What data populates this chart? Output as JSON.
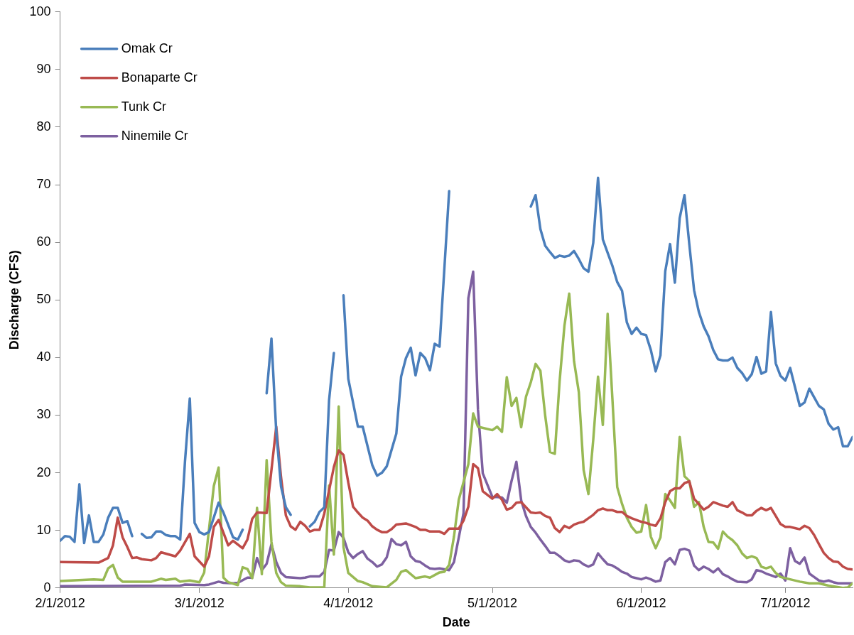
{
  "chart_data": {
    "type": "line",
    "xlabel": "Date",
    "ylabel": "Discharge (CFS)",
    "xlim": [
      "2012-02-01",
      "2012-07-15"
    ],
    "ylim": [
      0,
      100
    ],
    "yticks": [
      0,
      10,
      20,
      30,
      40,
      50,
      60,
      70,
      80,
      90,
      100
    ],
    "xticks": [
      {
        "value": "2012-02-01",
        "label": "2/1/2012"
      },
      {
        "value": "2012-03-01",
        "label": "3/1/2012"
      },
      {
        "value": "2012-04-01",
        "label": "4/1/2012"
      },
      {
        "value": "2012-05-01",
        "label": "5/1/2012"
      },
      {
        "value": "2012-06-01",
        "label": "6/1/2012"
      },
      {
        "value": "2012-07-01",
        "label": "7/1/2012"
      }
    ],
    "legend": "top left",
    "series": [
      {
        "name": "Omak Cr",
        "color": "#4a7ebb",
        "x": [
          "2012-02-01",
          "2012-02-02",
          "2012-02-03",
          "2012-02-04",
          "2012-02-05",
          "2012-02-06",
          "2012-02-07",
          "2012-02-08",
          "2012-02-09",
          "2012-02-10",
          "2012-02-11",
          "2012-02-12",
          "2012-02-13",
          "2012-02-14",
          "2012-02-15",
          "2012-02-16",
          "2012-02-17",
          "2012-02-18",
          "2012-02-19",
          "2012-02-20",
          "2012-02-21",
          "2012-02-22",
          "2012-02-23",
          "2012-02-24",
          "2012-02-25",
          "2012-02-26",
          "2012-02-27",
          "2012-02-28",
          "2012-02-29",
          "2012-03-01",
          "2012-03-02",
          "2012-03-03",
          "2012-03-05",
          "2012-03-06",
          "2012-03-08",
          "2012-03-09",
          "2012-03-10",
          "2012-03-12",
          "2012-03-15",
          "2012-03-16",
          "2012-03-17",
          "2012-03-18",
          "2012-03-19",
          "2012-03-20",
          "2012-03-22",
          "2012-03-24",
          "2012-03-25",
          "2012-03-26",
          "2012-03-27",
          "2012-03-28",
          "2012-03-29",
          "2012-03-30",
          "2012-03-31",
          "2012-04-01",
          "2012-04-03",
          "2012-04-04",
          "2012-04-06",
          "2012-04-07",
          "2012-04-08",
          "2012-04-09",
          "2012-04-11",
          "2012-04-12",
          "2012-04-13",
          "2012-04-14",
          "2012-04-15",
          "2012-04-16",
          "2012-04-17",
          "2012-04-18",
          "2012-04-19",
          "2012-04-20",
          "2012-04-22",
          "2012-04-25",
          "2012-05-09",
          "2012-05-10",
          "2012-05-11",
          "2012-05-12",
          "2012-05-13",
          "2012-05-14",
          "2012-05-15",
          "2012-05-16",
          "2012-05-17",
          "2012-05-18",
          "2012-05-19",
          "2012-05-20",
          "2012-05-21",
          "2012-05-22",
          "2012-05-23",
          "2012-05-24",
          "2012-05-25",
          "2012-05-26",
          "2012-05-27",
          "2012-05-28",
          "2012-05-29",
          "2012-05-30",
          "2012-05-31",
          "2012-06-01",
          "2012-06-02",
          "2012-06-03",
          "2012-06-04",
          "2012-06-05",
          "2012-06-06",
          "2012-06-07",
          "2012-06-08",
          "2012-06-09",
          "2012-06-10",
          "2012-06-11",
          "2012-06-12",
          "2012-06-13",
          "2012-06-14",
          "2012-06-15",
          "2012-06-16",
          "2012-06-17",
          "2012-06-18",
          "2012-06-19",
          "2012-06-20",
          "2012-06-21",
          "2012-06-22",
          "2012-06-23",
          "2012-06-24",
          "2012-06-25",
          "2012-06-26",
          "2012-06-27",
          "2012-06-28",
          "2012-06-29",
          "2012-06-30",
          "2012-07-01",
          "2012-07-02",
          "2012-07-03",
          "2012-07-04",
          "2012-07-05",
          "2012-07-06",
          "2012-07-07",
          "2012-07-08",
          "2012-07-09",
          "2012-07-10",
          "2012-07-11",
          "2012-07-12",
          "2012-07-13",
          "2012-07-14",
          "2012-07-15"
        ],
        "values": [
          8.2,
          9,
          8.9,
          8,
          18,
          7.8,
          12.6,
          8,
          8,
          9.3,
          12.2,
          13.9,
          13.9,
          11.3,
          11.6,
          9,
          null,
          9.4,
          8.7,
          8.8,
          9.8,
          9.8,
          9.2,
          9,
          9,
          8.4,
          22,
          32.9,
          11.3,
          9.7,
          9.3,
          9.7,
          14.8,
          13.1,
          8.8,
          8.4,
          10.1,
          null,
          33.8,
          43.3,
          27.1,
          17.6,
          14,
          12.7,
          null,
          10.7,
          11.5,
          13.2,
          14,
          32.6,
          40.8,
          null,
          50.8,
          36.3,
          28,
          28,
          21.3,
          19.5,
          20,
          21.1,
          26.8,
          36.7,
          39.9,
          41.7,
          36.9,
          40.8,
          39.9,
          37.8,
          42.4,
          41.9,
          68.9,
          null,
          66.2,
          68.2,
          62.3,
          59.4,
          58.3,
          57.3,
          57.7,
          57.5,
          57.7,
          58.5,
          57.1,
          55.5,
          54.9,
          59.9,
          71.2,
          60.5,
          58.2,
          55.9,
          53.1,
          51.6,
          46.1,
          44.1,
          45.2,
          44.1,
          43.9,
          41.3,
          37.6,
          40.4,
          55,
          59.7,
          53,
          64.2,
          68.2,
          59.7,
          51.7,
          47.9,
          45.4,
          43.7,
          41.3,
          39.7,
          39.5,
          39.5,
          40,
          38.2,
          37.3,
          36,
          37.1,
          40.1,
          37.2,
          37.6,
          47.9,
          39,
          36.8,
          36,
          38.2,
          34.9,
          31.6,
          32.2,
          34.6,
          33.1,
          31.6,
          31,
          28.5,
          27.5,
          27.9,
          24.6,
          24.6,
          26.2
        ]
      },
      {
        "name": "Bonaparte Cr",
        "color": "#be4b48",
        "x": [
          "2012-02-01",
          "2012-02-09",
          "2012-02-11",
          "2012-02-12",
          "2012-02-13",
          "2012-02-14",
          "2012-02-15",
          "2012-02-16",
          "2012-02-17",
          "2012-02-18",
          "2012-02-20",
          "2012-02-21",
          "2012-02-22",
          "2012-02-25",
          "2012-02-26",
          "2012-02-28",
          "2012-02-29",
          "2012-03-02",
          "2012-03-03",
          "2012-03-04",
          "2012-03-05",
          "2012-03-07",
          "2012-03-08",
          "2012-03-10",
          "2012-03-11",
          "2012-03-12",
          "2012-03-13",
          "2012-03-15",
          "2012-03-17",
          "2012-03-18",
          "2012-03-19",
          "2012-03-20",
          "2012-03-21",
          "2012-03-22",
          "2012-03-23",
          "2012-03-24",
          "2012-03-25",
          "2012-03-26",
          "2012-03-27",
          "2012-03-29",
          "2012-03-30",
          "2012-03-31",
          "2012-04-01",
          "2012-04-02",
          "2012-04-03",
          "2012-04-04",
          "2012-04-05",
          "2012-04-06",
          "2012-04-07",
          "2012-04-08",
          "2012-04-09",
          "2012-04-10",
          "2012-04-11",
          "2012-04-13",
          "2012-04-15",
          "2012-04-16",
          "2012-04-17",
          "2012-04-18",
          "2012-04-20",
          "2012-04-21",
          "2012-04-22",
          "2012-04-24",
          "2012-04-25",
          "2012-04-26",
          "2012-04-27",
          "2012-04-28",
          "2012-04-29",
          "2012-05-01",
          "2012-05-02",
          "2012-05-03",
          "2012-05-04",
          "2012-05-05",
          "2012-05-06",
          "2012-05-07",
          "2012-05-08",
          "2012-05-09",
          "2012-05-10",
          "2012-05-11",
          "2012-05-12",
          "2012-05-13",
          "2012-05-14",
          "2012-05-15",
          "2012-05-16",
          "2012-05-17",
          "2012-05-18",
          "2012-05-19",
          "2012-05-20",
          "2012-05-21",
          "2012-05-22",
          "2012-05-23",
          "2012-05-24",
          "2012-05-25",
          "2012-05-26",
          "2012-05-27",
          "2012-05-28",
          "2012-05-29",
          "2012-05-30",
          "2012-05-31",
          "2012-06-01",
          "2012-06-02",
          "2012-06-03",
          "2012-06-04",
          "2012-06-05",
          "2012-06-06",
          "2012-06-07",
          "2012-06-08",
          "2012-06-09",
          "2012-06-10",
          "2012-06-11",
          "2012-06-12",
          "2012-06-14",
          "2012-06-15",
          "2012-06-16",
          "2012-06-17",
          "2012-06-18",
          "2012-06-19",
          "2012-06-20",
          "2012-06-21",
          "2012-06-22",
          "2012-06-23",
          "2012-06-24",
          "2012-06-25",
          "2012-06-26",
          "2012-06-27",
          "2012-06-28",
          "2012-06-29",
          "2012-06-30",
          "2012-07-01",
          "2012-07-02",
          "2012-07-03",
          "2012-07-04",
          "2012-07-05",
          "2012-07-06",
          "2012-07-07",
          "2012-07-08",
          "2012-07-09",
          "2012-07-10",
          "2012-07-11",
          "2012-07-12",
          "2012-07-13",
          "2012-07-14",
          "2012-07-15"
        ],
        "values": [
          4.5,
          4.4,
          5.2,
          7.4,
          12.2,
          8.8,
          7.1,
          5.2,
          5.3,
          5,
          4.8,
          5.2,
          6.2,
          5.5,
          6.5,
          9.4,
          5.5,
          3.7,
          5.5,
          10.6,
          11.8,
          7.4,
          8.2,
          6.9,
          8.4,
          12,
          13.1,
          13,
          28,
          19.2,
          12.6,
          10.7,
          10.1,
          11.5,
          10.8,
          9.8,
          10.1,
          10.1,
          12.9,
          21,
          23.9,
          23.1,
          18.3,
          14.1,
          13.1,
          12.2,
          11.7,
          10.7,
          10.1,
          9.7,
          9.7,
          10.2,
          11,
          11.2,
          10.6,
          10.1,
          10.1,
          9.8,
          9.8,
          9.4,
          10.3,
          10.3,
          11.7,
          14.1,
          21.5,
          20.8,
          16.8,
          15.5,
          16.3,
          15.3,
          13.6,
          13.9,
          14.8,
          14.9,
          14,
          13.1,
          13,
          13.1,
          12.5,
          12.2,
          10.4,
          9.7,
          10.8,
          10.4,
          11,
          11.3,
          11.5,
          12.1,
          12.7,
          13.5,
          13.8,
          13.5,
          13.5,
          13.2,
          13.2,
          12.5,
          12.1,
          11.8,
          11.5,
          11.3,
          11,
          10.8,
          12.1,
          14.9,
          16.8,
          17.3,
          17.3,
          18.2,
          18.5,
          15.5,
          13.6,
          14.1,
          14.9,
          14.6,
          14.3,
          14.1,
          14.9,
          13.5,
          13.1,
          12.6,
          12.6,
          13.4,
          13.9,
          13.5,
          13.9,
          12.5,
          11.1,
          10.6,
          10.6,
          10.4,
          10.2,
          10.8,
          10.4,
          9.2,
          7.6,
          6.1,
          5.2,
          4.6,
          4.5,
          3.7,
          3.3,
          3.2
        ]
      },
      {
        "name": "Tunk Cr",
        "color": "#98b954",
        "x": [
          "2012-02-01",
          "2012-02-08",
          "2012-02-10",
          "2012-02-11",
          "2012-02-12",
          "2012-02-13",
          "2012-02-14",
          "2012-02-20",
          "2012-02-22",
          "2012-02-23",
          "2012-02-25",
          "2012-02-26",
          "2012-02-28",
          "2012-03-01",
          "2012-03-02",
          "2012-03-04",
          "2012-03-05",
          "2012-03-06",
          "2012-03-07",
          "2012-03-09",
          "2012-03-10",
          "2012-03-11",
          "2012-03-12",
          "2012-03-13",
          "2012-03-14",
          "2012-03-15",
          "2012-03-16",
          "2012-03-17",
          "2012-03-18",
          "2012-03-19",
          "2012-03-22",
          "2012-03-24",
          "2012-03-27",
          "2012-03-28",
          "2012-03-29",
          "2012-03-30",
          "2012-03-31",
          "2012-04-01",
          "2012-04-03",
          "2012-04-04",
          "2012-04-06",
          "2012-04-09",
          "2012-04-11",
          "2012-04-12",
          "2012-04-13",
          "2012-04-15",
          "2012-04-17",
          "2012-04-18",
          "2012-04-20",
          "2012-04-21",
          "2012-04-22",
          "2012-04-23",
          "2012-04-24",
          "2012-04-26",
          "2012-04-27",
          "2012-04-28",
          "2012-05-01",
          "2012-05-02",
          "2012-05-03",
          "2012-05-04",
          "2012-05-05",
          "2012-05-06",
          "2012-05-07",
          "2012-05-08",
          "2012-05-09",
          "2012-05-10",
          "2012-05-11",
          "2012-05-12",
          "2012-05-13",
          "2012-05-14",
          "2012-05-15",
          "2012-05-16",
          "2012-05-17",
          "2012-05-18",
          "2012-05-19",
          "2012-05-20",
          "2012-05-21",
          "2012-05-22",
          "2012-05-23",
          "2012-05-24",
          "2012-05-25",
          "2012-05-26",
          "2012-05-27",
          "2012-05-28",
          "2012-05-29",
          "2012-05-30",
          "2012-05-31",
          "2012-06-01",
          "2012-06-02",
          "2012-06-03",
          "2012-06-04",
          "2012-06-05",
          "2012-06-06",
          "2012-06-07",
          "2012-06-08",
          "2012-06-09",
          "2012-06-10",
          "2012-06-11",
          "2012-06-12",
          "2012-06-13",
          "2012-06-14",
          "2012-06-15",
          "2012-06-16",
          "2012-06-17",
          "2012-06-18",
          "2012-06-19",
          "2012-06-20",
          "2012-06-21",
          "2012-06-22",
          "2012-06-23",
          "2012-06-24",
          "2012-06-25",
          "2012-06-26",
          "2012-06-27",
          "2012-06-28",
          "2012-06-29",
          "2012-06-30",
          "2012-07-02",
          "2012-07-04",
          "2012-07-06",
          "2012-07-08",
          "2012-07-10",
          "2012-07-13",
          "2012-07-14",
          "2012-07-15"
        ],
        "values": [
          1.2,
          1.5,
          1.4,
          3.4,
          4,
          1.8,
          1.1,
          1.1,
          1.6,
          1.4,
          1.6,
          1.1,
          1.3,
          1,
          2.7,
          17.7,
          20.9,
          1.8,
          1,
          0.5,
          3.6,
          3.3,
          1.7,
          13.9,
          2.4,
          22.2,
          8,
          2.6,
          1,
          0.4,
          0.3,
          0.1,
          0.1,
          17.8,
          5.8,
          31.5,
          7.1,
          2.6,
          1.2,
          1,
          0.3,
          0.1,
          1.4,
          2.8,
          3.1,
          1.7,
          2,
          1.8,
          2.7,
          2.8,
          4,
          8.9,
          15.3,
          21.5,
          30.3,
          28,
          27.4,
          28,
          27.1,
          36.6,
          31.6,
          33,
          27.9,
          33.2,
          35.7,
          38.9,
          37.7,
          29.9,
          23.6,
          23.3,
          35.9,
          45.5,
          51.1,
          39.4,
          34,
          20.5,
          16.3,
          25.7,
          36.7,
          28.3,
          47.6,
          32.7,
          17.5,
          14.6,
          12.2,
          10.6,
          9.6,
          9.8,
          14.4,
          8.9,
          6.9,
          8.8,
          16.3,
          15.2,
          13.9,
          26.2,
          19.4,
          18.6,
          14.1,
          14.9,
          10.6,
          8,
          7.9,
          6.8,
          9.8,
          8.9,
          8.3,
          7.4,
          6,
          5.2,
          5.5,
          5.2,
          3.7,
          3.4,
          3.7,
          2.6,
          1.9,
          1.5,
          1.1,
          0.8,
          0.8,
          0.4,
          0,
          0.1,
          0.8
        ]
      },
      {
        "name": "Ninemile Cr",
        "color": "#7d60a0",
        "x": [
          "2012-02-01",
          "2012-02-26",
          "2012-02-27",
          "2012-03-02",
          "2012-03-03",
          "2012-03-05",
          "2012-03-06",
          "2012-03-08",
          "2012-03-09",
          "2012-03-11",
          "2012-03-12",
          "2012-03-13",
          "2012-03-14",
          "2012-03-15",
          "2012-03-16",
          "2012-03-17",
          "2012-03-18",
          "2012-03-19",
          "2012-03-22",
          "2012-03-23",
          "2012-03-24",
          "2012-03-26",
          "2012-03-27",
          "2012-03-28",
          "2012-03-29",
          "2012-03-30",
          "2012-03-31",
          "2012-04-01",
          "2012-04-02",
          "2012-04-03",
          "2012-04-04",
          "2012-04-05",
          "2012-04-06",
          "2012-04-07",
          "2012-04-08",
          "2012-04-09",
          "2012-04-10",
          "2012-04-11",
          "2012-04-12",
          "2012-04-13",
          "2012-04-14",
          "2012-04-15",
          "2012-04-16",
          "2012-04-17",
          "2012-04-18",
          "2012-04-19",
          "2012-04-20",
          "2012-04-22",
          "2012-04-23",
          "2012-04-25",
          "2012-04-26",
          "2012-04-27",
          "2012-04-28",
          "2012-04-29",
          "2012-05-01",
          "2012-05-02",
          "2012-05-03",
          "2012-05-04",
          "2012-05-05",
          "2012-05-06",
          "2012-05-07",
          "2012-05-08",
          "2012-05-09",
          "2012-05-10",
          "2012-05-11",
          "2012-05-12",
          "2012-05-13",
          "2012-05-14",
          "2012-05-15",
          "2012-05-16",
          "2012-05-17",
          "2012-05-18",
          "2012-05-19",
          "2012-05-20",
          "2012-05-21",
          "2012-05-22",
          "2012-05-23",
          "2012-05-24",
          "2012-05-25",
          "2012-05-26",
          "2012-05-27",
          "2012-05-28",
          "2012-05-29",
          "2012-05-30",
          "2012-05-31",
          "2012-06-01",
          "2012-06-02",
          "2012-06-03",
          "2012-06-04",
          "2012-06-05",
          "2012-06-06",
          "2012-06-07",
          "2012-06-08",
          "2012-06-09",
          "2012-06-10",
          "2012-06-11",
          "2012-06-12",
          "2012-06-13",
          "2012-06-14",
          "2012-06-15",
          "2012-06-16",
          "2012-06-17",
          "2012-06-18",
          "2012-06-19",
          "2012-06-20",
          "2012-06-21",
          "2012-06-23",
          "2012-06-24",
          "2012-06-25",
          "2012-06-26",
          "2012-06-27",
          "2012-06-28",
          "2012-06-29",
          "2012-06-30",
          "2012-07-01",
          "2012-07-02",
          "2012-07-03",
          "2012-07-04",
          "2012-07-05",
          "2012-07-06",
          "2012-07-07",
          "2012-07-08",
          "2012-07-09",
          "2012-07-10",
          "2012-07-11",
          "2012-07-12",
          "2012-07-14",
          "2012-07-15"
        ],
        "values": [
          0.3,
          0.4,
          0.6,
          0.5,
          0.6,
          1.1,
          0.9,
          0.8,
          0.9,
          1.8,
          1.8,
          5.2,
          3.1,
          4.2,
          7.6,
          4.5,
          2.6,
          1.9,
          1.7,
          1.8,
          2,
          2,
          2.8,
          6.6,
          6.5,
          9.7,
          8.7,
          6.2,
          5.2,
          5.9,
          6.4,
          5.1,
          4.5,
          3.7,
          4.1,
          5.3,
          8.5,
          7.6,
          7.4,
          8,
          5.5,
          4.7,
          4.5,
          3.9,
          3.4,
          3.3,
          3.4,
          3.1,
          4.5,
          13,
          50.3,
          54.9,
          31,
          19.9,
          15.8,
          15.8,
          15.7,
          14.8,
          18.6,
          21.9,
          15.2,
          12.5,
          10.6,
          9.6,
          8.4,
          7.3,
          6.1,
          6.1,
          5.5,
          4.8,
          4.5,
          4.8,
          4.7,
          4.1,
          3.7,
          4.1,
          6,
          5,
          4.1,
          3.9,
          3.4,
          2.8,
          2.5,
          1.9,
          1.7,
          1.5,
          1.8,
          1.5,
          1.1,
          1.3,
          4.5,
          5.2,
          4.1,
          6.6,
          6.8,
          6.5,
          3.9,
          3.1,
          3.7,
          3.3,
          2.7,
          3.4,
          2.4,
          2,
          1.5,
          1.1,
          1,
          1.5,
          3.1,
          2.9,
          2.5,
          2.2,
          1.9,
          2.5,
          1.3,
          6.9,
          4.7,
          4.2,
          5.3,
          2.5,
          1.9,
          1.3,
          1.1,
          1.3,
          1,
          0.8,
          0.8,
          0.8
        ]
      }
    ]
  }
}
